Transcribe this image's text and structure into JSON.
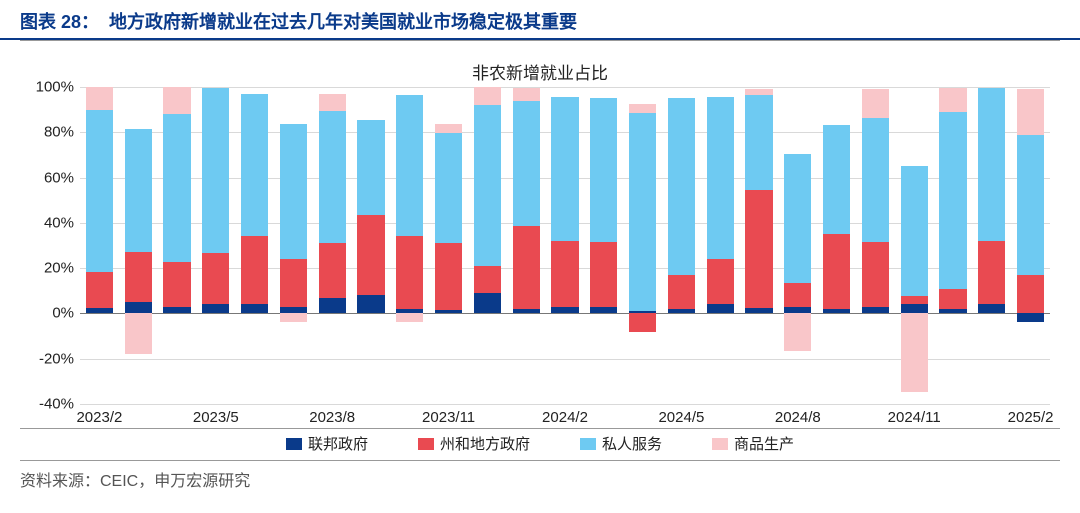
{
  "figure_number": "图表 28：",
  "figure_title": "地方政府新增就业在过去几年对美国就业市场稳定极其重要",
  "chart": {
    "type": "stacked-bar",
    "subtitle": "非农新增就业占比",
    "y_axis": {
      "min": -40,
      "max": 100,
      "step": 20,
      "suffix": "%",
      "ticks": [
        -40,
        -20,
        0,
        20,
        40,
        60,
        80,
        100
      ]
    },
    "x_axis": {
      "categories": [
        "2023/2",
        "2023/3",
        "2023/4",
        "2023/5",
        "2023/6",
        "2023/7",
        "2023/8",
        "2023/9",
        "2023/10",
        "2023/11",
        "2023/12",
        "2024/1",
        "2024/2",
        "2024/3",
        "2024/4",
        "2024/5",
        "2024/6",
        "2024/7",
        "2024/8",
        "2024/9",
        "2024/10",
        "2024/11",
        "2024/12",
        "2025/1",
        "2025/2"
      ],
      "shown_labels": {
        "0": "2023/2",
        "3": "2023/5",
        "6": "2023/8",
        "9": "2023/11",
        "12": "2024/2",
        "15": "2024/5",
        "18": "2024/8",
        "21": "2024/11",
        "24": "2025/2"
      }
    },
    "series": [
      {
        "key": "federal",
        "label": "联邦政府",
        "color": "#0a3a8a"
      },
      {
        "key": "state",
        "label": "州和地方政府",
        "color": "#e94a51"
      },
      {
        "key": "private",
        "label": "私人服务",
        "color": "#6ecaf2"
      },
      {
        "key": "goods",
        "label": "商品生产",
        "color": "#f9c6c9"
      }
    ],
    "data": [
      {
        "federal": 2.5,
        "state": 16.0,
        "private": 71.5,
        "goods": 10.0
      },
      {
        "federal": 5.0,
        "state": 22.0,
        "private": 54.5,
        "goods": -18.0
      },
      {
        "federal": 3.0,
        "state": 19.5,
        "private": 65.5,
        "goods": 12.0
      },
      {
        "federal": 4.0,
        "state": 22.5,
        "private": 73.0,
        "goods": 0.0
      },
      {
        "federal": 4.0,
        "state": 30.0,
        "private": 63.0,
        "goods": 0.0
      },
      {
        "federal": 3.0,
        "state": 21.0,
        "private": 59.5,
        "goods": -4.0
      },
      {
        "federal": 7.0,
        "state": 24.0,
        "private": 58.5,
        "goods": 7.5
      },
      {
        "federal": 8.0,
        "state": 35.5,
        "private": 42.0,
        "goods": 0.0
      },
      {
        "federal": 2.0,
        "state": 32.0,
        "private": 62.5,
        "goods": -4.0
      },
      {
        "federal": 1.5,
        "state": 29.5,
        "private": 48.5,
        "goods": 4.0
      },
      {
        "federal": 9.0,
        "state": 12.0,
        "private": 71.0,
        "goods": 8.0
      },
      {
        "federal": 2.0,
        "state": 36.5,
        "private": 55.5,
        "goods": 5.5
      },
      {
        "federal": 3.0,
        "state": 29.0,
        "private": 63.5,
        "goods": 0.0
      },
      {
        "federal": 3.0,
        "state": 28.5,
        "private": 63.5,
        "goods": 0.0
      },
      {
        "federal": 1.0,
        "state": -8.0,
        "private": 87.5,
        "goods": 4.0
      },
      {
        "federal": 2.0,
        "state": 15.0,
        "private": 78.0,
        "goods": 0.0
      },
      {
        "federal": 4.0,
        "state": 20.0,
        "private": 71.5,
        "goods": 0.0
      },
      {
        "federal": 2.5,
        "state": 52.0,
        "private": 42.0,
        "goods": 2.5
      },
      {
        "federal": 3.0,
        "state": 10.5,
        "private": 57.0,
        "goods": -16.5
      },
      {
        "federal": 2.0,
        "state": 33.0,
        "private": 48.0,
        "goods": 0.0
      },
      {
        "federal": 3.0,
        "state": 28.5,
        "private": 55.0,
        "goods": 12.5
      },
      {
        "federal": 4.0,
        "state": 3.5,
        "private": 57.5,
        "goods": -34.5
      },
      {
        "federal": 2.0,
        "state": 9.0,
        "private": 78.0,
        "goods": 10.5
      },
      {
        "federal": 4.0,
        "state": 28.0,
        "private": 67.5,
        "goods": 0.0
      },
      {
        "federal": -4.0,
        "state": 17.0,
        "private": 62.0,
        "goods": 20.0
      }
    ],
    "colors": {
      "header_color": "#0a3a8a",
      "grid_color": "#d9d9d9",
      "axis_text": "#222222",
      "background": "#ffffff"
    }
  },
  "source_label": "资料来源：CEIC，申万宏源研究"
}
